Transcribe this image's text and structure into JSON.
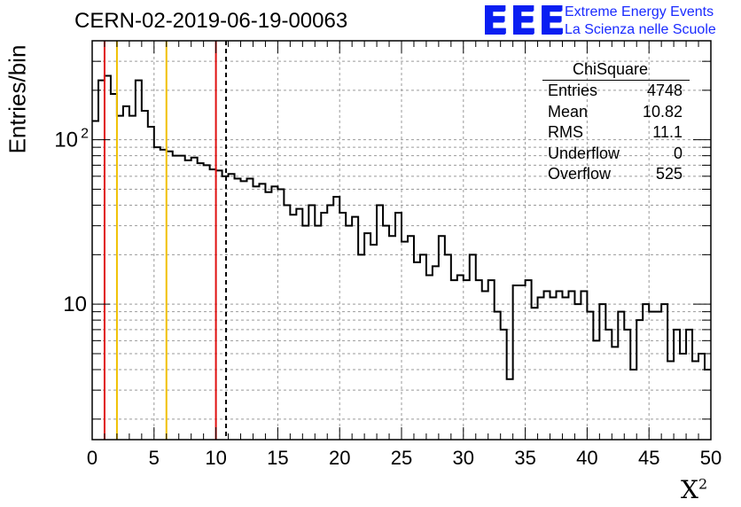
{
  "title": "CERN-02-2019-06-19-00063",
  "logo": {
    "mark": "EEE",
    "line1": "Extreme Energy Events",
    "line2": "La Scienza nelle Scuole",
    "color": "#0a1ef2"
  },
  "stats": {
    "title": "ChiSquare",
    "rows": [
      {
        "label": "Entries",
        "value": "4748"
      },
      {
        "label": "Mean",
        "value": "10.82"
      },
      {
        "label": "RMS",
        "value": "11.1"
      },
      {
        "label": "Underflow",
        "value": "0"
      },
      {
        "label": "Overflow",
        "value": "525"
      }
    ]
  },
  "chart_data": {
    "type": "histogram",
    "ylabel": "Entries/bin",
    "xlabel": "X",
    "xlabel_sup": "2",
    "xlim": [
      0,
      50
    ],
    "ylim": [
      1.5,
      400
    ],
    "yscale": "log",
    "grid": true,
    "bin_width": 0.5,
    "x_ticks": [
      0,
      5,
      10,
      15,
      20,
      25,
      30,
      35,
      40,
      45,
      50
    ],
    "y_tick_labels": [
      {
        "value": 10,
        "label": "10"
      },
      {
        "value": 100,
        "label": "10",
        "sup": "2"
      }
    ],
    "values": [
      130,
      230,
      245,
      190,
      140,
      160,
      140,
      230,
      150,
      120,
      90,
      87,
      85,
      80,
      80,
      75,
      78,
      72,
      70,
      66,
      65,
      60,
      62,
      58,
      56,
      58,
      52,
      54,
      48,
      52,
      50,
      40,
      35,
      38,
      30,
      40,
      30,
      36,
      40,
      45,
      36,
      30,
      34,
      20,
      27,
      23,
      40,
      30,
      26,
      36,
      24,
      26,
      18,
      20,
      15,
      17,
      26,
      20,
      14,
      15,
      14,
      20,
      14,
      12,
      14,
      9,
      7,
      3.5,
      13,
      13,
      14,
      9.5,
      11,
      12,
      11,
      12,
      11,
      12,
      10,
      12,
      9,
      6,
      10,
      7,
      5.5,
      9,
      7,
      4,
      8,
      10,
      9,
      9,
      10,
      4.5,
      7,
      5,
      7,
      4.5,
      5,
      4
    ],
    "lines": [
      {
        "x": 1,
        "color": "#e01010",
        "style": "solid"
      },
      {
        "x": 2,
        "color": "#f0c000",
        "style": "solid"
      },
      {
        "x": 6,
        "color": "#f0c000",
        "style": "solid"
      },
      {
        "x": 10,
        "color": "#e01010",
        "style": "solid"
      },
      {
        "x": 10.82,
        "color": "#000000",
        "style": "dashed"
      }
    ]
  }
}
